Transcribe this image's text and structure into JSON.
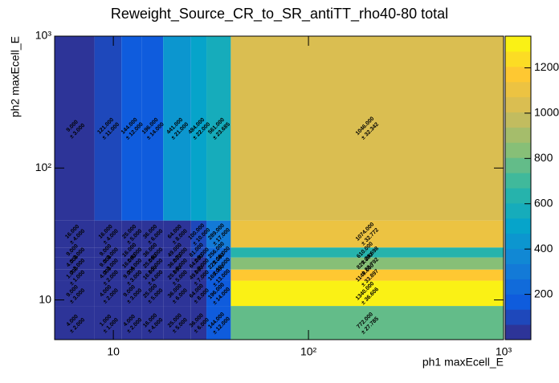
{
  "chart_data": {
    "type": "heatmap",
    "title": "Reweight_Source_CR_to_SR_antiTT_rho40-80 total",
    "xlabel": "ph1 maxEcell_E",
    "ylabel": "ph2 maxEcell_E",
    "log_x": true,
    "log_y": true,
    "xlim": [
      5,
      1000
    ],
    "ylim": [
      5,
      1000
    ],
    "xticks": [
      10,
      {
        "value": 100,
        "label": "10²"
      },
      {
        "value": 1000,
        "label": "10³"
      }
    ],
    "yticks": [
      10,
      {
        "value": 100,
        "label": "10²"
      },
      {
        "value": 1000,
        "label": "10³"
      }
    ],
    "xbins": [
      5,
      8,
      11,
      14,
      18,
      25,
      30,
      40,
      1000
    ],
    "ybins": [
      5,
      9,
      14,
      17,
      21,
      25,
      40,
      1000
    ],
    "values": [
      [
        4,
        1,
        4,
        16,
        25,
        36,
        144,
        772
      ],
      [
        9,
        4,
        9,
        25,
        36,
        64,
        196,
        1340
      ],
      [
        1,
        4,
        9,
        16,
        25,
        49,
        169,
        1149
      ],
      [
        4,
        9,
        16,
        25,
        36,
        64,
        225,
        829
      ],
      [
        9,
        9,
        16,
        36,
        49,
        81,
        256,
        610
      ],
      [
        16,
        16,
        25,
        36,
        64,
        100,
        289,
        1074
      ],
      [
        9,
        121,
        144,
        196,
        441,
        484,
        561,
        1046
      ]
    ],
    "value_labels": [
      [
        "4.000",
        "1.000",
        "4.000",
        "16.000",
        "25.000",
        "36.000",
        "144.000",
        "772.000"
      ],
      [
        "9.000",
        "4.000",
        "9.000",
        "25.000",
        "36.000",
        "64.000",
        "196.000",
        "1340.000"
      ],
      [
        "1.000",
        "4.000",
        "9.000",
        "16.000",
        "25.000",
        "49.000",
        "169.000",
        "1149.000"
      ],
      [
        "4.000",
        "9.000",
        "16.000",
        "25.000",
        "36.000",
        "64.000",
        "225.000",
        "829.000"
      ],
      [
        "9.000",
        "9.000",
        "16.000",
        "36.000",
        "49.000",
        "81.000",
        "256.000",
        "610.000"
      ],
      [
        "16.000",
        "16.000",
        "25.000",
        "36.000",
        "64.000",
        "100.000",
        "289.000",
        "1074.000"
      ],
      [
        "9.000",
        "121.000",
        "144.000",
        "196.000",
        "441.000",
        "484.000",
        "561.000",
        "1046.000"
      ]
    ],
    "errors": [
      [
        2,
        1,
        2,
        4,
        5,
        6,
        12,
        27.785
      ],
      [
        3,
        2,
        3,
        5,
        6,
        8,
        14,
        36.606
      ],
      [
        1,
        2,
        3,
        4,
        5,
        7,
        13,
        33.897
      ],
      [
        2,
        3,
        4,
        5,
        6,
        8,
        15,
        28.792
      ],
      [
        3,
        3,
        4,
        6,
        7,
        9,
        16,
        24.698
      ],
      [
        4,
        4,
        5,
        6,
        8,
        10,
        17,
        32.772
      ],
      [
        3,
        11,
        12,
        14,
        21,
        22,
        23.685,
        32.342
      ]
    ],
    "error_labels": [
      [
        "± 2.000",
        "± 1.000",
        "± 2.000",
        "± 4.000",
        "± 5.000",
        "± 6.000",
        "± 12.000",
        "± 27.785"
      ],
      [
        "± 3.000",
        "± 2.000",
        "± 3.000",
        "± 5.000",
        "± 6.000",
        "± 8.000",
        "± 14.000",
        "± 36.606"
      ],
      [
        "± 1.000",
        "± 2.000",
        "± 3.000",
        "± 4.000",
        "± 5.000",
        "± 7.000",
        "± 13.000",
        "± 33.897"
      ],
      [
        "± 2.000",
        "± 3.000",
        "± 4.000",
        "± 5.000",
        "± 6.000",
        "± 8.000",
        "± 15.000",
        "± 28.792"
      ],
      [
        "± 3.000",
        "± 3.000",
        "± 4.000",
        "± 6.000",
        "± 7.000",
        "± 9.000",
        "± 16.000",
        "± 24.698"
      ],
      [
        "± 4.000",
        "± 4.000",
        "± 5.000",
        "± 6.000",
        "± 8.000",
        "± 10.000",
        "± 17.000",
        "± 32.772"
      ],
      [
        "± 3.000",
        "± 11.000",
        "± 12.000",
        "± 14.000",
        "± 21.000",
        "± 22.000",
        "± 23.685",
        "± 32.342"
      ]
    ],
    "zlim": [
      0,
      1340
    ],
    "zticks": [
      200,
      400,
      600,
      800,
      1000,
      1200
    ],
    "contours": 20,
    "palette": [
      "#352a87",
      "#0f5cdd",
      "#1481d6",
      "#06a4ca",
      "#2eb7a4",
      "#87bf77",
      "#d1bb59",
      "#fec832",
      "#f9fb0e"
    ]
  }
}
